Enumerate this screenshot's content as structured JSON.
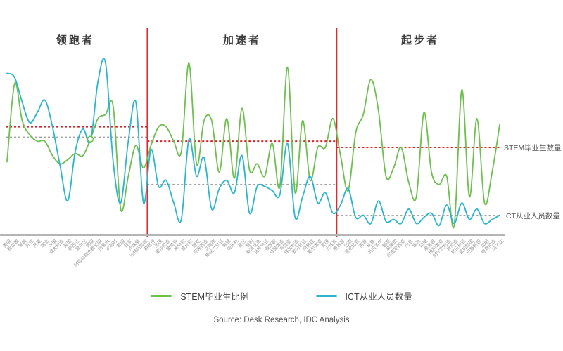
{
  "chart_data": {
    "type": "line",
    "title": "",
    "grid": false,
    "x_axis": {
      "label": "",
      "tick_rotation_deg": -45
    },
    "y_axis": {
      "label": "",
      "range": [
        0,
        100
      ],
      "ticks_visible": false
    },
    "sections": [
      {
        "label": "领跑者",
        "count": 19,
        "ref_stem": 52,
        "ref_ict": 47
      },
      {
        "label": "加速者",
        "count": 25,
        "ref_stem": 45,
        "ref_ict": 24
      },
      {
        "label": "起步者",
        "count": 22,
        "ref_stem": 42,
        "ref_ict": 9
      }
    ],
    "section_divider_color": "#e0282e",
    "reference_line_styles": {
      "stem": {
        "color": "#d8262c",
        "dash": "3 3",
        "width": 2
      },
      "ict": {
        "color": "#a3a3a3",
        "dash": "3 3",
        "width": 1.3
      }
    },
    "categories": [
      "美国",
      "新加坡",
      "瑞典",
      "芬兰",
      "丹麦",
      "瑞士",
      "中国",
      "澳大利亚",
      "英国",
      "新西兰",
      "爱尔兰",
      "德国",
      "阿拉伯联合酋长国",
      "加拿大",
      "比利时",
      "韩国",
      "日本",
      "卢森堡",
      "沙特阿拉伯",
      "西班牙",
      "法国",
      "爱沙尼亚",
      "葡萄牙",
      "奥地利",
      "意大利",
      "捷克",
      "马来西亚",
      "立陶宛",
      "斯洛文尼亚",
      "希腊",
      "匈牙利",
      "波兰",
      "智利",
      "斯洛伐克",
      "克罗地亚",
      "俄罗斯",
      "拉脱维亚",
      "乌拉圭",
      "保加利亚",
      "罗马尼亚",
      "阿根廷",
      "塞尔维亚",
      "泰国",
      "土耳其",
      "墨西哥",
      "巴西",
      "哥伦比亚",
      "南非",
      "秘鲁",
      "厄瓜多尔",
      "越南",
      "菲律宾",
      "印度尼西亚",
      "约旦",
      "埃及",
      "印度",
      "摩洛哥",
      "玻利维亚",
      "阿尔及利亚",
      "肯尼亚",
      "尼日利亚",
      "孟加拉国",
      "巴基斯坦",
      "加纳",
      "坦桑尼亚",
      "乌干达"
    ],
    "series": [
      {
        "name": "STEM毕业生比例",
        "color": "#6dbf4e",
        "right_label": "STEM毕业生数量",
        "values": [
          35,
          73,
          55,
          48,
          45,
          45,
          38,
          34,
          36,
          39,
          38,
          46,
          56,
          58,
          62,
          12,
          28,
          43,
          32,
          43,
          52,
          52,
          45,
          40,
          83,
          34,
          55,
          55,
          30,
          56,
          27,
          61,
          31,
          34,
          28,
          44,
          23,
          81,
          20,
          55,
          26,
          42,
          42,
          56,
          38,
          21,
          49,
          58,
          75,
          60,
          28,
          32,
          42,
          25,
          18,
          59,
          30,
          24,
          28,
          4,
          70,
          18,
          56,
          15,
          30,
          53
        ]
      },
      {
        "name": "ICT从业人员数量",
        "color": "#2bb6ce",
        "right_label": "ICT从业人员数量",
        "values": [
          78,
          76,
          64,
          54,
          59,
          65,
          52,
          33,
          16,
          40,
          51,
          45,
          74,
          83,
          35,
          15,
          45,
          64,
          15,
          41,
          23,
          26,
          15,
          7,
          46,
          28,
          37,
          12,
          22,
          26,
          20,
          38,
          10,
          23,
          23,
          21,
          19,
          44,
          8,
          18,
          28,
          15,
          20,
          10,
          14,
          22,
          8,
          9,
          5,
          16,
          6,
          7,
          5,
          12,
          5,
          8,
          10,
          4,
          14,
          5,
          15,
          7,
          12,
          5,
          7,
          9
        ]
      }
    ],
    "highlight_marker": {
      "series_index": 0,
      "point_index": 11
    },
    "legend_position": "bottom-center"
  },
  "legend": {
    "items": [
      {
        "label": "STEM毕业生比例",
        "color": "#6dbf4e"
      },
      {
        "label": "ICT从业人员数量",
        "color": "#2bb6ce"
      }
    ]
  },
  "right_labels": {
    "stem": "STEM毕业生数量",
    "ict": "ICT从业人员数量"
  },
  "source": "Source: Desk Research, IDC Analysis",
  "colors": {
    "axis": "#b5b5b5",
    "divider_red": "#e0282e",
    "ref_red": "#d8262c",
    "ref_gray": "#a3a3a3",
    "section_title": "#3d3d3d",
    "tick_label": "#9a9a9a"
  }
}
